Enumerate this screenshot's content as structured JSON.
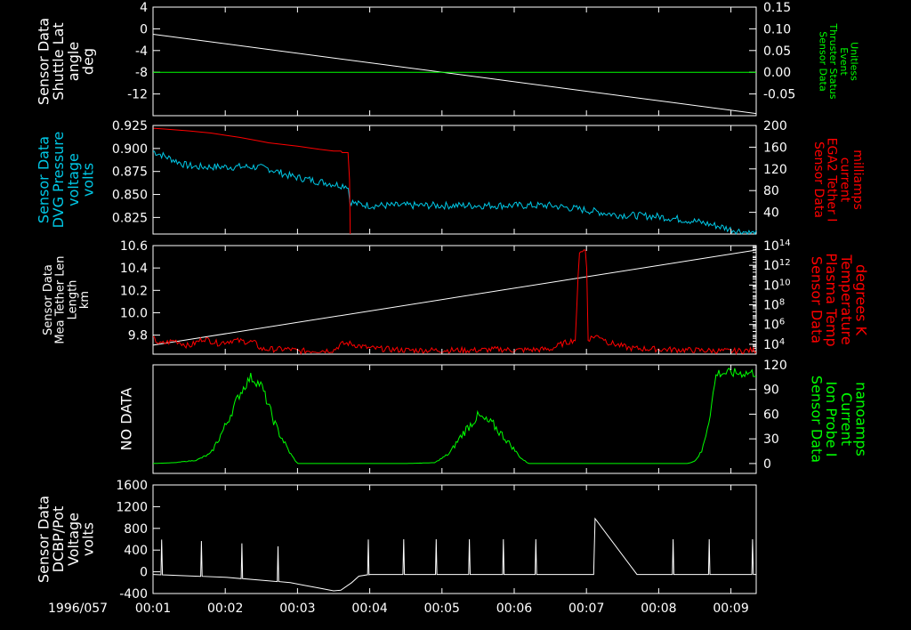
{
  "chart_data": [
    {
      "type": "line",
      "left_label": [
        "Sensor Data",
        "Shuttle Lat",
        "angle",
        "deg"
      ],
      "left_ticks": [
        4,
        0,
        -4,
        -8,
        -12
      ],
      "left_ylim": [
        -16,
        4
      ],
      "right_label": [
        "Sensor Data",
        "Thruster Status",
        "Event",
        "Unitless"
      ],
      "right_ticks": [
        "0.15",
        "0.10",
        "0.05",
        "0.00",
        "-0.05"
      ],
      "right_ylim": [
        -0.1,
        0.15
      ],
      "series": [
        {
          "color": "#ffffff",
          "axis": "left",
          "x": [
            1.0,
            9.35
          ],
          "y": [
            -1.0,
            -15.6
          ]
        },
        {
          "color": "#00ff00",
          "axis": "right",
          "x": [
            1.0,
            9.35
          ],
          "y": [
            0.0,
            0.0
          ]
        }
      ]
    },
    {
      "type": "line",
      "left_label": [
        "Sensor Data",
        "DVG Pressure",
        "voltage",
        "volts"
      ],
      "left_label_color": "#00c8e6",
      "left_ticks": [
        "0.925",
        "0.900",
        "0.875",
        "0.850",
        "0.825"
      ],
      "left_ylim": [
        0.807,
        0.925
      ],
      "right_label": [
        "Sensor Data",
        "EGA2 Tether I",
        "current",
        "milliamps"
      ],
      "right_label_color": "#ff0000",
      "right_ticks": [
        200,
        160,
        120,
        80,
        40
      ],
      "right_ylim": [
        0,
        200
      ],
      "series": [
        {
          "color": "#00c8e6",
          "axis": "left",
          "x": [
            1.0,
            1.15,
            1.3,
            1.45,
            1.6,
            2.0,
            2.4,
            2.6,
            2.9,
            3.3,
            3.6,
            3.7,
            3.72,
            3.8,
            4.0,
            5.0,
            5.2,
            5.5,
            6.0,
            6.5,
            7.0,
            7.4,
            8.0,
            8.5,
            8.8,
            9.0,
            9.35
          ],
          "y": [
            0.897,
            0.892,
            0.887,
            0.882,
            0.88,
            0.88,
            0.88,
            0.878,
            0.87,
            0.864,
            0.86,
            0.86,
            0.843,
            0.84,
            0.838,
            0.838,
            0.838,
            0.838,
            0.838,
            0.838,
            0.833,
            0.828,
            0.826,
            0.821,
            0.816,
            0.812,
            0.807
          ],
          "noise": 0.004
        },
        {
          "color": "#ff0000",
          "axis": "right",
          "x": [
            1.0,
            1.2,
            1.5,
            1.8,
            2.0,
            2.2,
            2.45,
            2.6,
            3.0,
            3.3,
            3.5,
            3.6,
            3.62,
            3.7,
            3.72,
            3.73
          ],
          "y": [
            195,
            193,
            190,
            186,
            182,
            178,
            172,
            168,
            162,
            156,
            153,
            153,
            150,
            150,
            100,
            0
          ],
          "noise": 0
        }
      ]
    },
    {
      "type": "line",
      "left_label": [
        "Sensor Data",
        "Mea Tether Len",
        "Length",
        "km"
      ],
      "left_ticks": [
        "10.6",
        "10.4",
        "10.2",
        "10.0",
        "9.8"
      ],
      "left_ylim": [
        9.63,
        10.6
      ],
      "right_label": [
        "Sensor Data",
        "Plasma Temp",
        "Temperature",
        "degrees K"
      ],
      "right_label_color": "#ff0000",
      "right_ticks": [
        "10^14",
        "10^12",
        "10^10",
        "10^8",
        "10^6",
        "10^4"
      ],
      "right_ylim": [
        3,
        14
      ],
      "right_scale": "log",
      "series": [
        {
          "color": "#ffffff",
          "axis": "left",
          "x": [
            1.0,
            9.35
          ],
          "y": [
            9.71,
            10.56
          ]
        },
        {
          "color": "#ff0000",
          "axis": "right",
          "x": [
            1.0,
            1.1,
            1.3,
            1.5,
            1.7,
            1.9,
            2.1,
            2.4,
            2.5,
            2.9,
            3.0,
            3.5,
            3.6,
            3.7,
            4.0,
            4.5,
            5.0,
            5.5,
            5.8,
            6.0,
            6.5,
            6.65,
            6.85,
            6.9,
            6.92,
            7.0,
            7.02,
            7.1,
            7.2,
            7.3,
            7.6,
            8.0,
            8.5,
            9.0,
            9.35
          ],
          "y": [
            4.6,
            4.0,
            4.4,
            3.8,
            4.6,
            4.1,
            4.4,
            4.2,
            3.5,
            3.5,
            3.3,
            3.4,
            4.0,
            4.1,
            3.6,
            3.4,
            3.4,
            3.4,
            3.5,
            3.4,
            3.5,
            4.0,
            4.5,
            13.5,
            13.5,
            13.5,
            4.5,
            4.8,
            4.8,
            4.2,
            3.6,
            3.5,
            3.4,
            3.3,
            3.4
          ],
          "noise": 0.3
        }
      ]
    },
    {
      "type": "line",
      "left_label": [
        "NO DATA"
      ],
      "right_label": [
        "Sensor Data",
        "Ion Probe I",
        "Current",
        "nanoamps"
      ],
      "right_label_color": "#00ff00",
      "right_ticks": [
        120,
        90,
        60,
        30,
        0
      ],
      "right_ylim": [
        -12,
        120
      ],
      "series": [
        {
          "color": "#00ff00",
          "axis": "right",
          "x": [
            1.0,
            1.3,
            1.6,
            1.8,
            2.0,
            2.2,
            2.35,
            2.5,
            2.7,
            2.9,
            3.0,
            3.5,
            4.0,
            4.5,
            4.9,
            5.1,
            5.3,
            5.5,
            5.6,
            5.7,
            5.9,
            6.1,
            6.2,
            6.5,
            7.0,
            7.5,
            8.0,
            8.4,
            8.5,
            8.6,
            8.7,
            8.8,
            9.35
          ],
          "y": [
            0,
            1,
            4,
            12,
            45,
            85,
            105,
            95,
            45,
            12,
            0,
            0,
            0,
            0,
            1,
            12,
            38,
            58,
            52,
            48,
            28,
            6,
            0,
            0,
            0,
            0,
            0,
            0,
            3,
            15,
            55,
            110,
            110
          ],
          "noise": 6
        }
      ]
    },
    {
      "type": "line",
      "left_label": [
        "Sensor Data",
        "DCBP/Pot",
        "Voltage",
        "volts"
      ],
      "left_ticks": [
        1600,
        1200,
        800,
        400,
        0,
        -400
      ],
      "left_ylim": [
        -400,
        1600
      ],
      "series": [
        {
          "color": "#ffffff",
          "axis": "left",
          "x": [
            1.0,
            2.0,
            2.9,
            3.1,
            3.3,
            3.5,
            3.6,
            3.75,
            3.85,
            4.0,
            5.0,
            6.0,
            7.0,
            7.1,
            7.12,
            7.7,
            8.0,
            9.0,
            9.35
          ],
          "y": [
            -50,
            -100,
            -200,
            -250,
            -300,
            -350,
            -340,
            -200,
            -80,
            -50,
            -50,
            -50,
            -50,
            -50,
            980,
            -50,
            -50,
            -50,
            -50
          ],
          "spikes_x": [
            1.12,
            1.67,
            2.23,
            2.73,
            3.98,
            4.47,
            4.92,
            5.38,
            5.85,
            6.3,
            8.2,
            8.7,
            9.3
          ],
          "spike_height": 650
        }
      ]
    }
  ],
  "x_axis": {
    "date_label": "1996/057",
    "ticks": [
      "00:01",
      "00:02",
      "00:03",
      "00:04",
      "00:05",
      "00:06",
      "00:07",
      "00:08",
      "00:09"
    ],
    "range": [
      1.0,
      9.35
    ]
  }
}
